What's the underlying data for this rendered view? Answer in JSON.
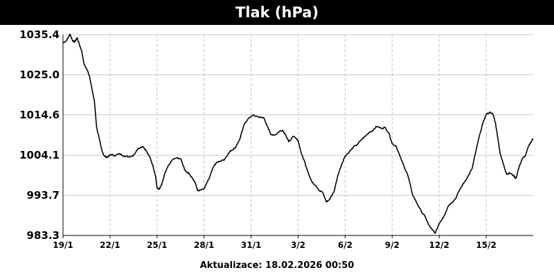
{
  "chart_data": {
    "type": "line",
    "title": "Tlak (hPa)",
    "y_ticks": [
      "1035.4",
      "1025.0",
      "1014.6",
      "1004.1",
      "993.7",
      "983.3"
    ],
    "ylim": [
      983.3,
      1035.4
    ],
    "x_ticks": [
      "19/1",
      "22/1",
      "25/1",
      "28/1",
      "31/1",
      "3/2",
      "6/2",
      "9/2",
      "12/2",
      "15/2"
    ],
    "x_day_range": [
      0,
      30
    ],
    "grid": true,
    "series": [
      {
        "x": [
          0,
          0.2,
          0.35,
          0.45,
          0.6,
          0.75,
          0.9,
          1.05,
          1.2,
          1.35,
          1.55,
          1.7,
          1.85,
          2.0,
          2.15,
          2.3,
          2.45,
          2.6,
          2.75,
          2.9,
          3.05,
          3.3,
          3.6,
          3.9,
          4.2,
          4.5,
          4.8,
          5.1,
          5.3,
          5.55,
          5.75,
          5.9,
          6.0,
          6.15,
          6.3,
          6.5,
          6.75,
          7.0,
          7.25,
          7.5,
          7.8,
          8.05,
          8.25,
          8.45,
          8.6,
          8.75,
          9.0,
          9.3,
          9.55,
          9.8,
          10.0,
          10.3,
          10.55,
          10.75,
          11.0,
          11.3,
          11.55,
          11.85,
          12.15,
          12.5,
          12.8,
          13.05,
          13.25,
          13.55,
          13.8,
          14.0,
          14.2,
          14.4,
          14.7,
          15.0,
          15.2,
          15.4,
          15.65,
          15.9,
          16.15,
          16.35,
          16.55,
          16.8,
          17.0,
          17.3,
          17.55,
          17.8,
          18.0,
          18.25,
          18.5,
          18.8,
          19.05,
          19.3,
          19.55,
          19.8,
          20.0,
          20.3,
          20.55,
          20.8,
          21.0,
          21.25,
          21.5,
          21.75,
          22.0,
          22.3,
          22.6,
          22.85,
          23.1,
          23.35,
          23.55,
          23.75,
          24.0,
          24.3,
          24.6,
          24.85,
          25.05,
          25.3,
          25.6,
          25.85,
          26.1,
          26.3,
          26.55,
          26.8,
          27.0,
          27.25,
          27.45,
          27.6,
          27.75,
          27.9,
          28.1,
          28.3,
          28.5,
          28.7,
          28.9,
          29.1,
          29.3,
          29.5,
          29.7,
          29.9,
          30.0
        ],
        "values": [
          1033.2,
          1033.8,
          1034.8,
          1035.5,
          1033.9,
          1033.5,
          1034.6,
          1032.8,
          1031.0,
          1027.6,
          1026.2,
          1024.5,
          1021.2,
          1018.2,
          1011.2,
          1008.6,
          1005.8,
          1004.1,
          1003.6,
          1003.8,
          1004.3,
          1004.0,
          1004.5,
          1003.9,
          1003.7,
          1004.1,
          1005.9,
          1006.4,
          1005.3,
          1003.5,
          1001.2,
          998.8,
          995.6,
          995.3,
          996.5,
          999.4,
          1001.6,
          1003.0,
          1003.4,
          1003.2,
          1000.1,
          999.3,
          998.2,
          996.8,
          994.9,
          995.1,
          995.5,
          997.9,
          1000.8,
          1002.3,
          1002.5,
          1002.9,
          1004.6,
          1005.4,
          1006.0,
          1008.5,
          1012.1,
          1013.7,
          1014.6,
          1013.9,
          1013.9,
          1011.6,
          1009.5,
          1009.4,
          1010.3,
          1010.6,
          1009.5,
          1007.6,
          1009.0,
          1008.0,
          1004.6,
          1002.6,
          999.5,
          997.0,
          996.2,
          994.9,
          994.6,
          992.0,
          992.6,
          994.8,
          999.1,
          1002.0,
          1003.9,
          1004.9,
          1006.1,
          1007.0,
          1008.2,
          1009.1,
          1010.1,
          1010.6,
          1011.6,
          1011.1,
          1011.3,
          1009.8,
          1007.1,
          1006.5,
          1003.8,
          1001.3,
          998.9,
          993.9,
          991.5,
          989.6,
          988.2,
          985.9,
          984.8,
          983.9,
          986.4,
          988.3,
          991.1,
          992.0,
          992.9,
          995.1,
          997.1,
          998.7,
          1000.6,
          1004.4,
          1008.9,
          1012.6,
          1014.7,
          1015.3,
          1014.6,
          1012.3,
          1008.4,
          1004.3,
          1001.8,
          999.2,
          999.5,
          999.0,
          998.1,
          1001.1,
          1003.2,
          1004.0,
          1006.4,
          1007.9,
          1008.4
        ]
      }
    ]
  },
  "footer": {
    "label": "Aktualizace: 18.02.2026 00:50"
  }
}
